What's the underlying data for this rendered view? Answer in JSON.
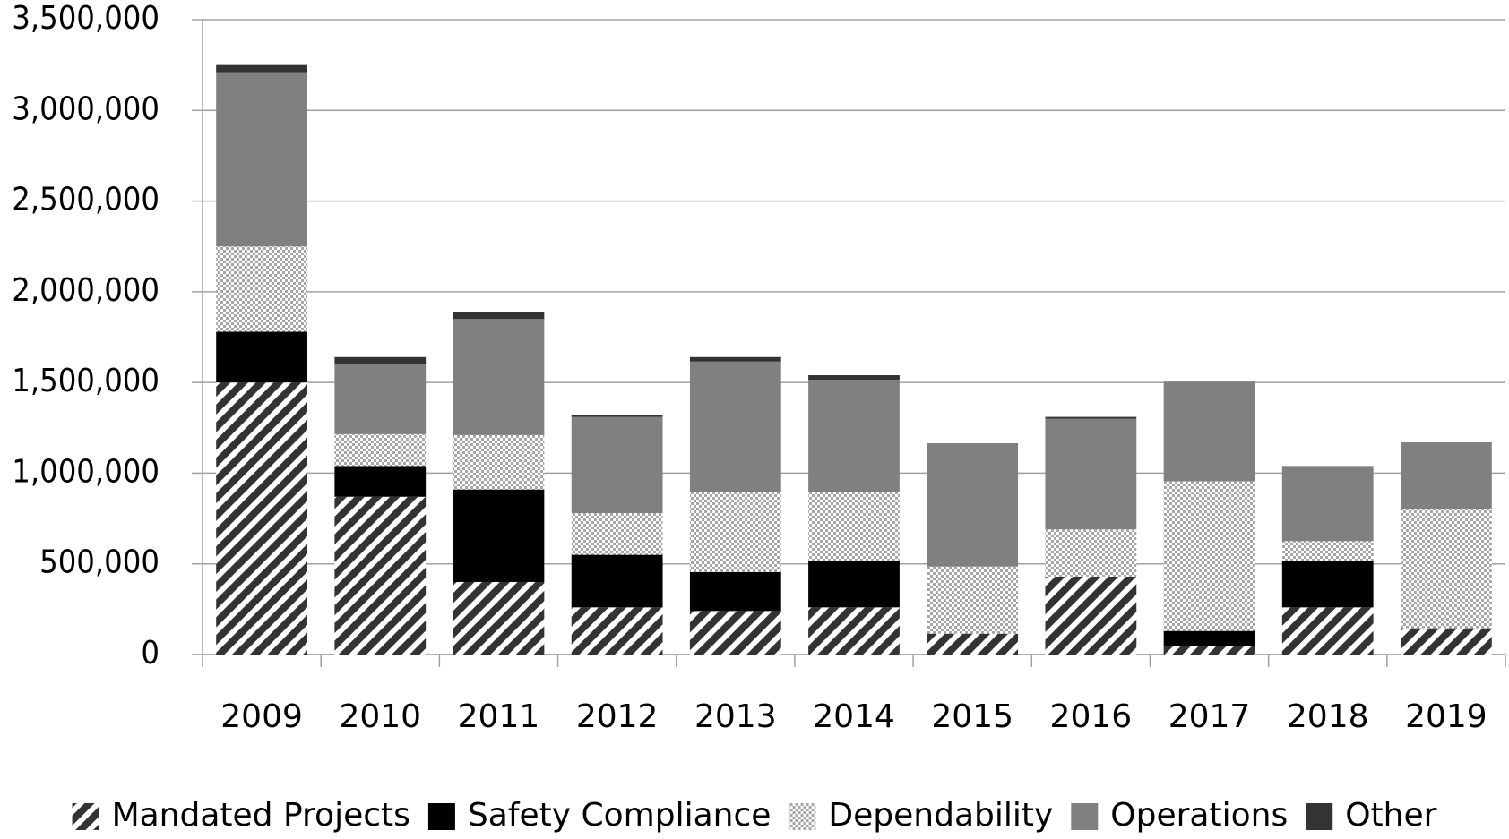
{
  "chart_data": {
    "type": "stacked_bar",
    "categories": [
      "2009",
      "2010",
      "2011",
      "2012",
      "2013",
      "2014",
      "2015",
      "2016",
      "2017",
      "2018",
      "2019"
    ],
    "series": [
      {
        "name": "Mandated Projects",
        "color": "#333333",
        "pattern": "stripes",
        "values": [
          1500000,
          870000,
          400000,
          260000,
          240000,
          260000,
          115000,
          430000,
          45000,
          260000,
          145000
        ]
      },
      {
        "name": "Safety Compliance",
        "color": "#000000",
        "pattern": "solid",
        "values": [
          280000,
          170000,
          510000,
          290000,
          215000,
          255000,
          0,
          0,
          85000,
          255000,
          0
        ]
      },
      {
        "name": "Dependability",
        "color": "#bfbfbf",
        "pattern": "checker",
        "values": [
          470000,
          175000,
          300000,
          230000,
          440000,
          380000,
          370000,
          260000,
          825000,
          110000,
          655000
        ]
      },
      {
        "name": "Operations",
        "color": "#808080",
        "pattern": "solid",
        "values": [
          960000,
          385000,
          640000,
          530000,
          720000,
          620000,
          680000,
          610000,
          550000,
          415000,
          370000
        ]
      },
      {
        "name": "Other",
        "color": "#333333",
        "pattern": "solid",
        "values": [
          40000,
          40000,
          40000,
          10000,
          25000,
          25000,
          0,
          10000,
          0,
          0,
          0
        ]
      }
    ],
    "ylim": [
      0,
      3500000
    ],
    "yticks": [
      0,
      {
        "value": 500000,
        "label": "500,000"
      },
      {
        "value": 1000000,
        "label": "1,000,000"
      },
      {
        "value": 1500000,
        "label": "1,500,000"
      },
      {
        "value": 2000000,
        "label": "2,000,000"
      },
      {
        "value": 2500000,
        "label": "2,500,000"
      },
      {
        "value": 3000000,
        "label": "3,000,000"
      },
      {
        "value": 3500000,
        "label": "3,500,000"
      }
    ],
    "grid": true,
    "legend": "bottom"
  }
}
